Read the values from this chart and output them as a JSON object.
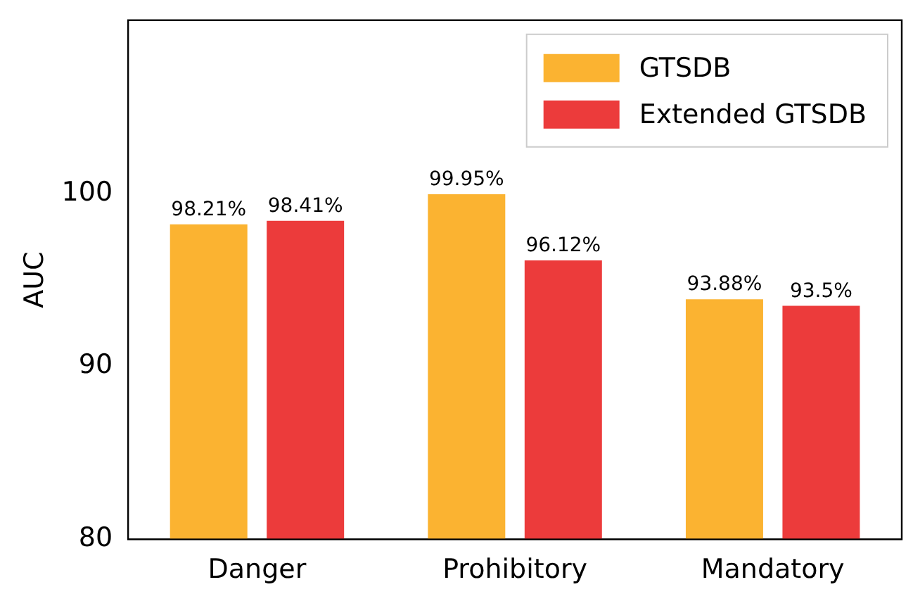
{
  "chart_data": {
    "type": "bar",
    "ylabel": "AUC",
    "categories": [
      "Danger",
      "Prohibitory",
      "Mandatory"
    ],
    "series": [
      {
        "name": "GTSDB",
        "color": "#fbb331",
        "values": [
          98.21,
          99.95,
          93.88
        ],
        "value_labels": [
          "98.21%",
          "99.95%",
          "93.88%"
        ]
      },
      {
        "name": "Extended GTSDB",
        "color": "#ec3b3b",
        "values": [
          98.41,
          96.12,
          93.5
        ],
        "value_labels": [
          "98.41%",
          "96.12%",
          "93.5%"
        ]
      }
    ],
    "ylim": [
      80,
      110
    ],
    "yticks": [
      80,
      90,
      100
    ],
    "grid": false,
    "legend": "top right"
  }
}
